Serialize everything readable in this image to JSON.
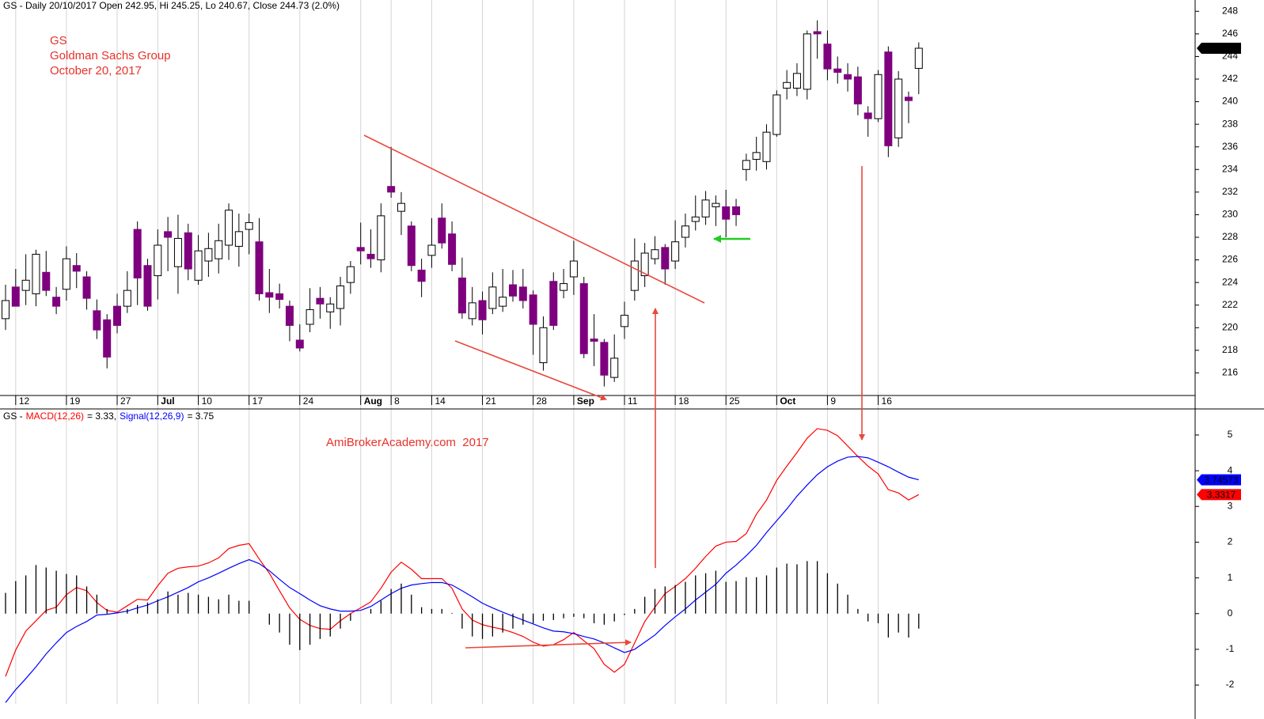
{
  "chart_data": [
    {
      "type": "candlestick",
      "header": "GS - Daily 20/10/2017 Open 242.95, Hi 245.25, Lo 240.67, Close 244.73 (2.0%)",
      "title": "GS",
      "subtitle": "Goldman Sachs Group",
      "date": "October 20, 2017",
      "categories": [
        null,
        "12",
        null,
        null,
        null,
        null,
        "19",
        null,
        null,
        null,
        null,
        "27",
        null,
        null,
        null,
        "Jul",
        null,
        null,
        null,
        "10",
        null,
        null,
        null,
        null,
        "17",
        null,
        null,
        null,
        null,
        "24",
        null,
        null,
        null,
        null,
        null,
        "Aug",
        null,
        null,
        "8",
        null,
        null,
        null,
        "14",
        null,
        null,
        null,
        null,
        "21",
        null,
        null,
        null,
        null,
        "28",
        null,
        null,
        null,
        "Sep",
        null,
        null,
        null,
        null,
        "11",
        null,
        null,
        null,
        null,
        "18",
        null,
        null,
        null,
        null,
        "25",
        null,
        null,
        null,
        null,
        "Oct",
        null,
        null,
        null,
        null,
        "9",
        null,
        null,
        null,
        null,
        "16",
        null,
        null,
        null,
        null
      ],
      "open": [
        220.8,
        223.6,
        223.3,
        223.0,
        224.9,
        222.7,
        223.4,
        225.5,
        224.5,
        221.5,
        220.7,
        221.9,
        221.9,
        228.7,
        225.5,
        224.6,
        228.5,
        225.4,
        228.4,
        224.2,
        225.9,
        226.1,
        227.3,
        227.2,
        228.7,
        227.6,
        223.1,
        223.0,
        221.9,
        218.9,
        220.3,
        222.6,
        221.4,
        221.7,
        224.0,
        227.1,
        226.5,
        226.0,
        232.5,
        230.3,
        229.0,
        225.1,
        226.4,
        229.7,
        228.3,
        224.4,
        220.8,
        222.4,
        221.7,
        221.9,
        223.8,
        223.6,
        222.9,
        216.9,
        224.1,
        223.3,
        224.5,
        223.9,
        219.0,
        218.7,
        215.6,
        220.1,
        223.3,
        224.6,
        226.1,
        227.1,
        225.9,
        228.0,
        229.4,
        229.8,
        230.7,
        230.7,
        230.7,
        234.0,
        234.9,
        234.7,
        237.1,
        241.2,
        241.2,
        241.1,
        246.2,
        245.1,
        242.9,
        242.4,
        242.2,
        239.0,
        238.5,
        244.4,
        236.8,
        240.4,
        242.95
      ],
      "high": [
        223.8,
        225.2,
        226.5,
        226.9,
        226.8,
        223.6,
        227.2,
        226.6,
        225.0,
        222.5,
        221.2,
        223.0,
        225.0,
        229.4,
        226.1,
        228.7,
        229.8,
        230.0,
        229.2,
        228.2,
        228.4,
        229.2,
        231.0,
        230.1,
        230.1,
        229.7,
        225.2,
        223.9,
        222.4,
        220.3,
        223.5,
        223.6,
        222.7,
        224.5,
        225.9,
        229.3,
        228.7,
        231.0,
        236.0,
        232.0,
        229.4,
        226.1,
        229.7,
        231.0,
        229.4,
        226.2,
        223.6,
        223.2,
        224.9,
        225.2,
        225.1,
        225.2,
        223.3,
        221.0,
        224.9,
        225.2,
        227.7,
        224.5,
        221.2,
        219.0,
        219.4,
        222.3,
        227.9,
        227.5,
        228.1,
        227.4,
        229.5,
        230.1,
        231.7,
        232.1,
        231.7,
        232.2,
        231.4,
        235.4,
        236.9,
        238.0,
        241.0,
        242.8,
        243.4,
        246.3,
        247.2,
        246.3,
        244.0,
        243.4,
        243.1,
        239.6,
        242.8,
        244.9,
        242.7,
        240.9,
        245.25
      ],
      "low": [
        219.8,
        221.9,
        222.0,
        221.9,
        222.8,
        221.2,
        222.4,
        223.5,
        221.6,
        219.0,
        216.4,
        219.5,
        221.3,
        222.0,
        221.5,
        222.5,
        225.0,
        223.0,
        224.2,
        223.8,
        224.5,
        224.8,
        226.0,
        225.4,
        226.5,
        222.4,
        221.3,
        221.7,
        218.8,
        217.9,
        219.6,
        220.8,
        219.9,
        220.2,
        223.0,
        225.6,
        225.3,
        224.9,
        231.5,
        228.2,
        225.0,
        222.7,
        225.3,
        227.0,
        225.0,
        220.8,
        220.2,
        219.4,
        221.2,
        221.4,
        222.3,
        221.7,
        217.6,
        216.2,
        219.8,
        222.6,
        222.9,
        217.3,
        216.6,
        214.8,
        215.2,
        219.0,
        222.4,
        223.6,
        225.6,
        223.8,
        225.2,
        227.1,
        228.6,
        229.1,
        229.0,
        228.0,
        229.0,
        233.0,
        233.9,
        234.0,
        236.9,
        240.2,
        240.5,
        240.2,
        243.8,
        241.9,
        241.6,
        240.9,
        238.8,
        236.9,
        238.2,
        235.1,
        236.0,
        238.1,
        240.67
      ],
      "close": [
        222.4,
        221.9,
        224.2,
        226.5,
        223.3,
        221.9,
        226.1,
        225.0,
        222.6,
        219.8,
        217.4,
        220.2,
        223.3,
        224.4,
        221.9,
        227.3,
        228.0,
        227.9,
        225.2,
        226.8,
        227.0,
        227.7,
        230.4,
        228.5,
        229.3,
        223.0,
        222.7,
        222.5,
        220.2,
        218.2,
        221.6,
        222.1,
        222.1,
        223.7,
        225.4,
        226.8,
        226.1,
        229.9,
        232.0,
        231.0,
        225.5,
        224.1,
        227.3,
        227.5,
        225.6,
        221.3,
        222.2,
        220.7,
        223.6,
        222.7,
        222.8,
        222.4,
        220.3,
        220.0,
        220.2,
        223.9,
        225.9,
        217.7,
        218.8,
        215.8,
        217.3,
        221.1,
        225.9,
        226.6,
        226.9,
        225.2,
        227.6,
        229.0,
        229.8,
        231.3,
        231.0,
        229.6,
        230.0,
        234.8,
        235.5,
        237.3,
        240.6,
        241.7,
        242.5,
        246.0,
        246.0,
        242.9,
        242.6,
        242.0,
        239.8,
        238.5,
        242.4,
        236.1,
        242.0,
        240.1,
        244.73
      ],
      "up_color": "#ffffff",
      "down_color": "#7f007f",
      "ylim": [
        214,
        249
      ],
      "yticks": [
        216,
        218,
        220,
        222,
        224,
        226,
        228,
        230,
        232,
        234,
        236,
        238,
        240,
        242,
        244,
        246,
        248
      ],
      "grid": true
    },
    {
      "type": "line",
      "legend_prefix": "GS -",
      "annotation": "AmiBrokerAcademy.com  2017",
      "series": [
        {
          "name": "MACD(12,26)",
          "color": "#ff0000",
          "legend_value": "= 3.33,",
          "values": [
            -1.76,
            -1.02,
            -0.49,
            -0.2,
            0.09,
            0.18,
            0.53,
            0.73,
            0.64,
            0.31,
            0.09,
            0.04,
            0.22,
            0.4,
            0.38,
            0.78,
            1.13,
            1.27,
            1.31,
            1.33,
            1.42,
            1.56,
            1.82,
            1.91,
            1.96,
            1.53,
            1.13,
            0.64,
            0.16,
            -0.16,
            -0.33,
            -0.42,
            -0.44,
            -0.2,
            0,
            0.16,
            0.33,
            0.71,
            1.16,
            1.44,
            1.24,
            0.98,
            0.98,
            0.98,
            0.71,
            0.13,
            -0.18,
            -0.31,
            -0.38,
            -0.44,
            -0.53,
            -0.64,
            -0.8,
            -0.91,
            -0.87,
            -0.73,
            -0.53,
            -0.76,
            -0.98,
            -1.42,
            -1.64,
            -1.42,
            -0.82,
            -0.22,
            0.18,
            0.56,
            0.76,
            0.98,
            1.27,
            1.6,
            1.89,
            2.0,
            2.02,
            2.24,
            2.78,
            3.18,
            3.73,
            4.13,
            4.51,
            4.91,
            5.18,
            5.13,
            4.98,
            4.69,
            4.4,
            4.13,
            3.91,
            3.47,
            3.38,
            3.18,
            3.3317
          ]
        },
        {
          "name": "Signal(12,26,9)",
          "color": "#0000ff",
          "legend_value": "= 3.75",
          "values": [
            -2.49,
            -2.13,
            -1.82,
            -1.49,
            -1.13,
            -0.82,
            -0.53,
            -0.36,
            -0.22,
            -0.04,
            -0.02,
            0.02,
            0.07,
            0.16,
            0.24,
            0.36,
            0.47,
            0.6,
            0.73,
            0.89,
            1.0,
            1.13,
            1.27,
            1.4,
            1.51,
            1.4,
            1.2,
            0.96,
            0.73,
            0.56,
            0.38,
            0.22,
            0.13,
            0.07,
            0.07,
            0.09,
            0.2,
            0.38,
            0.56,
            0.71,
            0.8,
            0.84,
            0.87,
            0.87,
            0.8,
            0.64,
            0.47,
            0.29,
            0.16,
            0.04,
            -0.07,
            -0.18,
            -0.29,
            -0.4,
            -0.49,
            -0.51,
            -0.56,
            -0.64,
            -0.71,
            -0.82,
            -0.96,
            -1.09,
            -1.0,
            -0.8,
            -0.6,
            -0.33,
            -0.09,
            0.13,
            0.38,
            0.6,
            0.82,
            1.13,
            1.36,
            1.62,
            1.91,
            2.27,
            2.6,
            2.93,
            3.29,
            3.6,
            3.89,
            4.11,
            4.27,
            4.38,
            4.4,
            4.36,
            4.24,
            4.11,
            3.96,
            3.82,
            3.74573
          ]
        },
        {
          "type": "bar",
          "color": "#000000",
          "values": [
            0.58,
            0.91,
            1.07,
            1.36,
            1.29,
            1.2,
            1.11,
            1.07,
            0.76,
            0.53,
            0.13,
            0,
            0.13,
            0.24,
            0.31,
            0.4,
            0.62,
            0.53,
            0.58,
            0.53,
            0.47,
            0.4,
            0.53,
            0.36,
            0.36,
            0,
            -0.31,
            -0.53,
            -0.87,
            -1.02,
            -0.87,
            -0.71,
            -0.64,
            -0.42,
            -0.2,
            0,
            0.13,
            0.36,
            0.69,
            0.84,
            0.53,
            0.18,
            0.13,
            0.13,
            0.02,
            -0.42,
            -0.64,
            -0.71,
            -0.64,
            -0.53,
            -0.42,
            -0.31,
            -0.27,
            -0.2,
            -0.18,
            -0.13,
            -0.09,
            -0.13,
            -0.27,
            -0.31,
            -0.22,
            -0.04,
            0.13,
            0.47,
            0.69,
            0.76,
            0.8,
            0.89,
            1.07,
            1.13,
            1.2,
            0.89,
            0.91,
            1.02,
            1.02,
            1.07,
            1.29,
            1.4,
            1.38,
            1.47,
            1.47,
            1.13,
            0.84,
            0.53,
            0.13,
            -0.22,
            -0.27,
            -0.67,
            -0.53,
            -0.67,
            -0.42
          ]
        }
      ],
      "ylim": [
        -2.53,
        5.73
      ],
      "yticks": [
        -2,
        -1,
        0,
        1,
        2,
        3,
        4,
        5
      ]
    }
  ]
}
